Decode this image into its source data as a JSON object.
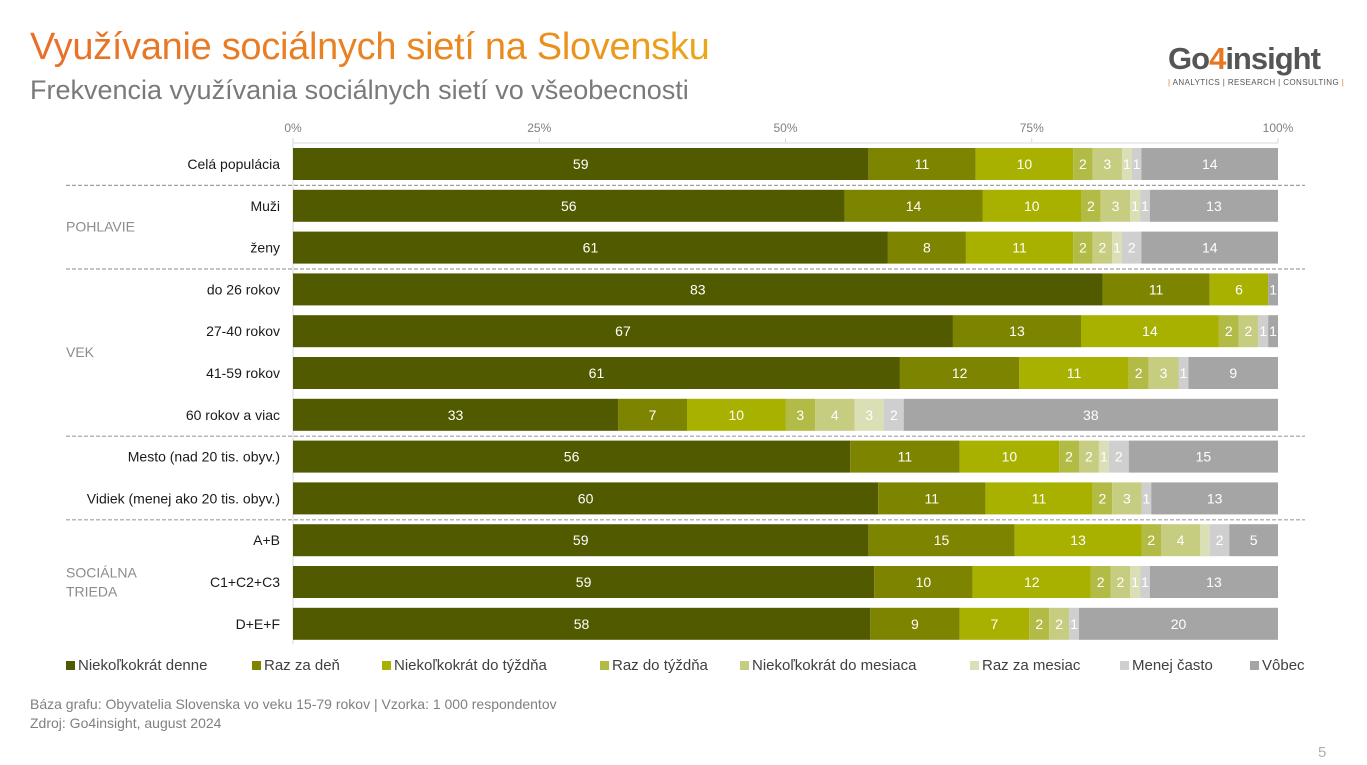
{
  "header": {
    "title": "Využívanie sociálnych sietí na Slovensku",
    "subtitle": "Frekvencia využívania sociálnych sietí vo všeobecnosti"
  },
  "logo": {
    "pre": "Go",
    "four": "4",
    "post": "insight",
    "tagline": "ANALYTICS | RESEARCH | CONSULTING"
  },
  "footer": {
    "base": "Báza grafu: Obyvatelia Slovenska vo veku 15-79 rokov | Vzorka: 1 000 respondentov",
    "source": "Zdroj: Go4insight, august 2024"
  },
  "page_number": "5",
  "chart_data": {
    "type": "bar",
    "orientation": "horizontal",
    "stacked": "percent",
    "title": "Frekvencia využívania sociálnych sietí vo všeobecnosti",
    "xlabel": "",
    "ylabel": "",
    "xlim": [
      0,
      100
    ],
    "x_ticks": [
      "0%",
      "25%",
      "50%",
      "75%",
      "100%"
    ],
    "grid": false,
    "legend_position": "bottom",
    "categories": [
      "Celá populácia",
      "Muži",
      "ženy",
      "do 26 rokov",
      "27-40 rokov",
      "41-59 rokov",
      "60 rokov a viac",
      "Mesto (nad 20 tis. obyv.)",
      "Vidiek (menej ako 20 tis. obyv.)",
      "A+B",
      "C1+C2+C3",
      "D+E+F"
    ],
    "groups": [
      {
        "label": "",
        "rows": [
          0
        ]
      },
      {
        "label": "POHLAVIE",
        "rows": [
          1,
          2
        ]
      },
      {
        "label": "VEK",
        "rows": [
          3,
          4,
          5,
          6
        ]
      },
      {
        "label": "",
        "rows": [
          7,
          8
        ]
      },
      {
        "label": "SOCIÁLNA TRIEDA",
        "rows": [
          9,
          10,
          11
        ]
      }
    ],
    "series": [
      {
        "name": "Niekoľkokrát denne",
        "color": "#525a00",
        "values": [
          59,
          56,
          61,
          83,
          67,
          61,
          33,
          56,
          60,
          59,
          59,
          58
        ]
      },
      {
        "name": "Raz za deň",
        "color": "#7c8400",
        "values": [
          11,
          14,
          8,
          11,
          13,
          12,
          7,
          11,
          11,
          15,
          10,
          9
        ]
      },
      {
        "name": "Niekoľkokrát do týždňa",
        "color": "#a8b000",
        "values": [
          10,
          10,
          11,
          6,
          14,
          11,
          10,
          10,
          11,
          13,
          12,
          7
        ]
      },
      {
        "name": "Raz do týždňa",
        "color": "#b2bb45",
        "values": [
          2,
          2,
          2,
          0,
          2,
          2,
          3,
          2,
          2,
          2,
          2,
          2
        ]
      },
      {
        "name": "Niekoľkokrát do mesiaca",
        "color": "#c6cc80",
        "values": [
          3,
          3,
          2,
          0,
          2,
          3,
          4,
          2,
          3,
          4,
          2,
          2
        ]
      },
      {
        "name": "Raz za mesiac",
        "color": "#dadfb5",
        "values": [
          1,
          1,
          1,
          0,
          0,
          0,
          3,
          1,
          0,
          1,
          1,
          0
        ]
      },
      {
        "name": "Menej často",
        "color": "#cfcfcf",
        "values": [
          1,
          1,
          2,
          0,
          1,
          1,
          2,
          2,
          1,
          2,
          1,
          1
        ]
      },
      {
        "name": "Vôbec",
        "color": "#a5a5a5",
        "values": [
          14,
          13,
          14,
          1,
          1,
          9,
          38,
          15,
          13,
          5,
          13,
          20
        ]
      }
    ],
    "hidden_labels": {
      "note": "segments with value 0 are not drawn; pale small segments without printed label",
      "unlabeled": [
        [
          9,
          5
        ],
        [
          11,
          5
        ]
      ]
    }
  }
}
